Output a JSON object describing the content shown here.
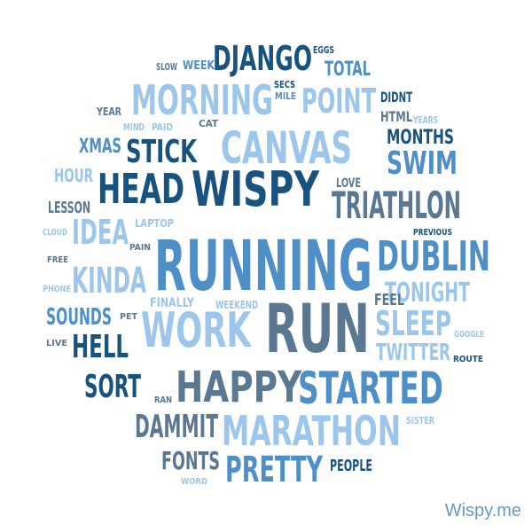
{
  "palette": {
    "navy": "#18527f",
    "medium": "#4f8fc8",
    "light": "#9cc6ec",
    "slate": "#5b7893"
  },
  "words": [
    {
      "text": "RUNNING",
      "color": "medium"
    },
    {
      "text": "RUN",
      "color": "slate"
    },
    {
      "text": "WISPY",
      "color": "navy"
    },
    {
      "text": "CANVAS",
      "color": "light"
    },
    {
      "text": "MORNING",
      "color": "light"
    },
    {
      "text": "DJANGO",
      "color": "navy"
    },
    {
      "text": "POINT",
      "color": "light"
    },
    {
      "text": "TOTAL",
      "color": "medium"
    },
    {
      "text": "STICK",
      "color": "navy"
    },
    {
      "text": "XMAS",
      "color": "medium"
    },
    {
      "text": "HEAD",
      "color": "navy"
    },
    {
      "text": "TRIATHLON",
      "color": "slate"
    },
    {
      "text": "SWIM",
      "color": "medium"
    },
    {
      "text": "MONTHS",
      "color": "navy"
    },
    {
      "text": "IDEA",
      "color": "light"
    },
    {
      "text": "DUBLIN",
      "color": "medium"
    },
    {
      "text": "KINDA",
      "color": "light"
    },
    {
      "text": "TONIGHT",
      "color": "light"
    },
    {
      "text": "WORK",
      "color": "light"
    },
    {
      "text": "SLEEP",
      "color": "light"
    },
    {
      "text": "HELL",
      "color": "navy"
    },
    {
      "text": "SOUNDS",
      "color": "medium"
    },
    {
      "text": "TWITTER",
      "color": "light"
    },
    {
      "text": "SORT",
      "color": "navy"
    },
    {
      "text": "HAPPY",
      "color": "slate"
    },
    {
      "text": "STARTED",
      "color": "medium"
    },
    {
      "text": "DAMMIT",
      "color": "slate"
    },
    {
      "text": "MARATHON",
      "color": "light"
    },
    {
      "text": "PRETTY",
      "color": "medium"
    },
    {
      "text": "FONTS",
      "color": "slate"
    },
    {
      "text": "PEOPLE",
      "color": "navy"
    },
    {
      "text": "HOUR",
      "color": "light"
    },
    {
      "text": "LESSON",
      "color": "slate"
    },
    {
      "text": "FEEL",
      "color": "slate"
    },
    {
      "text": "LOVE",
      "color": "slate"
    },
    {
      "text": "DIDNT",
      "color": "navy"
    },
    {
      "text": "HTML",
      "color": "slate"
    },
    {
      "text": "WEEK",
      "color": "medium"
    },
    {
      "text": "SLOW",
      "color": "slate"
    },
    {
      "text": "EGGS",
      "color": "navy"
    },
    {
      "text": "SECS",
      "color": "navy"
    },
    {
      "text": "MILE",
      "color": "medium"
    },
    {
      "text": "YEAR",
      "color": "slate"
    },
    {
      "text": "MIND",
      "color": "light"
    },
    {
      "text": "PAID",
      "color": "light"
    },
    {
      "text": "CAT",
      "color": "slate"
    },
    {
      "text": "YEARS",
      "color": "light"
    },
    {
      "text": "LAPTOP",
      "color": "light"
    },
    {
      "text": "CLOUD",
      "color": "light"
    },
    {
      "text": "PAIN",
      "color": "slate"
    },
    {
      "text": "PREVIOUS",
      "color": "navy"
    },
    {
      "text": "FREE",
      "color": "slate"
    },
    {
      "text": "PHONE",
      "color": "light"
    },
    {
      "text": "FINALLY",
      "color": "light"
    },
    {
      "text": "WEEKEND",
      "color": "light"
    },
    {
      "text": "PET",
      "color": "slate"
    },
    {
      "text": "LIVE",
      "color": "slate"
    },
    {
      "text": "GOOGLE",
      "color": "light"
    },
    {
      "text": "ROUTE",
      "color": "navy"
    },
    {
      "text": "RAN",
      "color": "slate"
    },
    {
      "text": "SISTER",
      "color": "light"
    },
    {
      "text": "WORD",
      "color": "light"
    }
  ],
  "brand": "Wispy.me"
}
